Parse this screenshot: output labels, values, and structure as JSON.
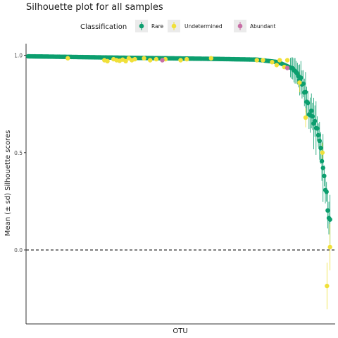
{
  "chart_data": {
    "type": "scatter",
    "title": "Silhouette plot for all samples",
    "xlabel": "OTU",
    "ylabel": "Mean (± sd) Silhouette scores",
    "ylim": [
      -0.38,
      1.06
    ],
    "yticks": [
      {
        "value": 0.0,
        "label": "0.0"
      },
      {
        "value": 0.5,
        "label": "0.5"
      },
      {
        "value": 1.0,
        "label": "1.0"
      }
    ],
    "reference_line": {
      "y": 0.0,
      "style": "dashed"
    },
    "grid": false,
    "legend": {
      "title": "Classification",
      "placement": "top",
      "entries": [
        {
          "name": "Rare",
          "color": "#0c9e6e"
        },
        {
          "name": "Undetermined",
          "color": "#f0e03a"
        },
        {
          "name": "Abundant",
          "color": "#c86fa6"
        }
      ]
    },
    "series": [
      {
        "name": "Rare",
        "color": "#0c9e6e",
        "x_range": [
          0,
          0.99
        ],
        "y_curve": [
          [
            0,
            0.995
          ],
          [
            0.3,
            0.988
          ],
          [
            0.6,
            0.982
          ],
          [
            0.75,
            0.978
          ],
          [
            0.82,
            0.965
          ],
          [
            0.87,
            0.93
          ],
          [
            0.9,
            0.86
          ],
          [
            0.92,
            0.72
          ],
          [
            0.95,
            0.6
          ],
          [
            0.97,
            0.4
          ],
          [
            0.99,
            0.12
          ]
        ]
      },
      {
        "name": "Undetermined",
        "color": "#f0e03a",
        "points": [
          [
            0.13,
            0.985
          ],
          [
            0.25,
            0.975
          ],
          [
            0.26,
            0.97
          ],
          [
            0.28,
            0.98
          ],
          [
            0.29,
            0.975
          ],
          [
            0.3,
            0.972
          ],
          [
            0.31,
            0.978
          ],
          [
            0.32,
            0.97
          ],
          [
            0.33,
            0.985
          ],
          [
            0.34,
            0.975
          ],
          [
            0.35,
            0.98
          ],
          [
            0.38,
            0.985
          ],
          [
            0.4,
            0.975
          ],
          [
            0.42,
            0.98
          ],
          [
            0.45,
            0.98
          ],
          [
            0.5,
            0.975
          ],
          [
            0.52,
            0.98
          ],
          [
            0.6,
            0.985
          ],
          [
            0.75,
            0.975
          ],
          [
            0.77,
            0.975
          ],
          [
            0.8,
            0.965
          ],
          [
            0.815,
            0.95
          ],
          [
            0.825,
            0.975
          ],
          [
            0.84,
            0.94
          ],
          [
            0.85,
            0.975
          ],
          [
            0.89,
            0.86
          ],
          [
            0.91,
            0.68
          ],
          [
            0.965,
            0.5
          ],
          [
            0.99,
            0.015
          ],
          [
            0.98,
            -0.185
          ]
        ]
      },
      {
        "name": "Abundant",
        "color": "#c86fa6",
        "points": [
          [
            0.44,
            0.975
          ],
          [
            0.85,
            0.935
          ]
        ]
      }
    ]
  }
}
